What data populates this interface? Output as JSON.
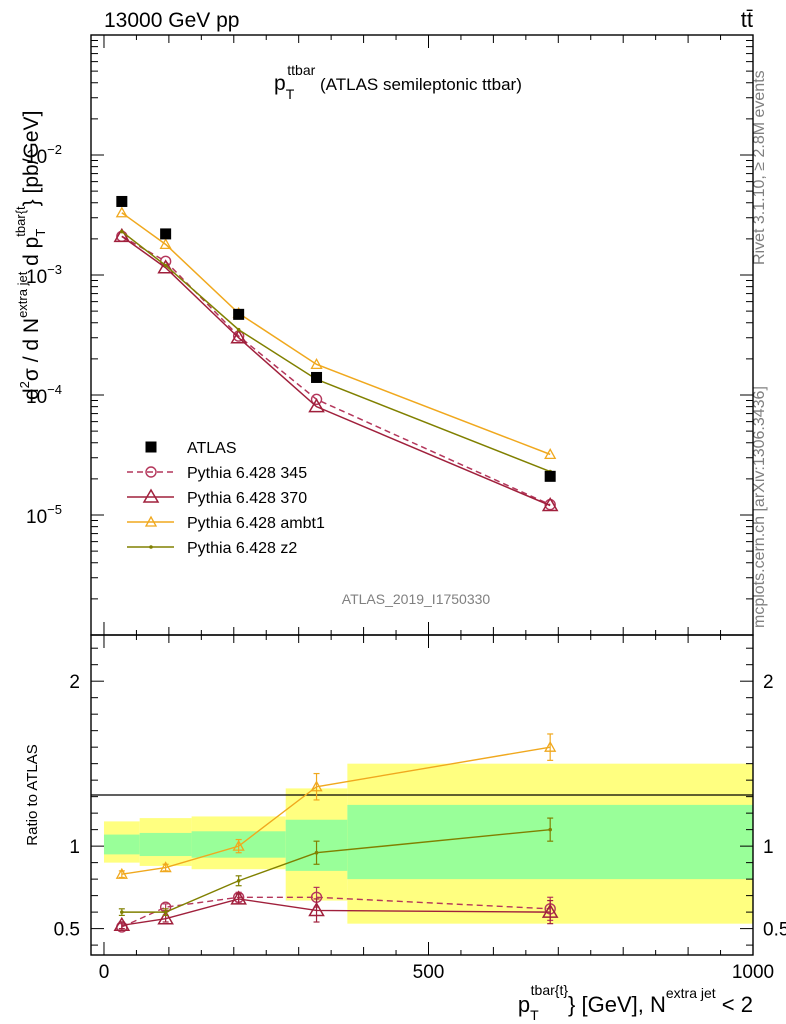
{
  "header": {
    "energy_label": "13000 GeV pp",
    "process_label": "tt̄",
    "side_rivet": "Rivet 3.1.10, ≥ 2.8M events",
    "side_mcplots": "mcplots.cern.ch [arXiv:1306.3436]",
    "analysis_id": "ATLAS_2019_I1750330"
  },
  "chart_data": [
    {
      "type": "scatter",
      "title": "p_T^ttbar (ATLAS semileptonic ttbar)",
      "title_parts": {
        "main": "p",
        "sub": "T",
        "sup": "ttbar",
        "rest": " (ATLAS semileptonic ttbar)"
      },
      "ylabel": "d²σ / d N^{extra jet} d p_T^{tbar{t}} [pb/GeV]",
      "ylabel_parts": {
        "p1": "d",
        "s1": "2",
        "p2": "σ  /  d N",
        "s2": "extra jet",
        "p3": " d p",
        "sub3": "T",
        "s3": "tbar{t",
        "p4": "} [pb/GeV]"
      },
      "xlim": [
        -20,
        1000
      ],
      "ylim": [
        1e-06,
        0.1
      ],
      "log_y": true,
      "y_ticks": [
        {
          "v": 1e-05,
          "m": "10",
          "e": "−5"
        },
        {
          "v": 0.0001,
          "m": "10",
          "e": "−4"
        },
        {
          "v": 0.001,
          "m": "10",
          "e": "−3"
        },
        {
          "v": 0.01,
          "m": "10",
          "e": "−2"
        }
      ],
      "legend_position": "bottom-left",
      "series": [
        {
          "name": "ATLAS",
          "color": "#000000",
          "marker": "square",
          "line": "none",
          "x": [
            27.5,
            95,
            207.5,
            327.5,
            687.5
          ],
          "y": [
            0.0041,
            0.0022,
            0.00047,
            0.00014,
            2.1e-05
          ]
        },
        {
          "name": "Pythia 6.428 345",
          "color": "#b4365b",
          "marker": "open-circle",
          "line": "dashed",
          "x": [
            27.5,
            95,
            207.5,
            327.5,
            687.5
          ],
          "y": [
            0.0021,
            0.0013,
            0.00031,
            9.2e-05,
            1.22e-05
          ]
        },
        {
          "name": "Pythia 6.428 370",
          "color": "#a0203c",
          "marker": "open-triangle-large",
          "line": "solid",
          "x": [
            27.5,
            95,
            207.5,
            327.5,
            687.5
          ],
          "y": [
            0.0021,
            0.00115,
            0.0003,
            8e-05,
            1.2e-05
          ]
        },
        {
          "name": "Pythia 6.428 ambt1",
          "color": "#f0a81e",
          "marker": "open-triangle",
          "line": "solid",
          "x": [
            27.5,
            95,
            207.5,
            327.5,
            687.5
          ],
          "y": [
            0.0033,
            0.0018,
            0.00048,
            0.00018,
            3.2e-05
          ]
        },
        {
          "name": "Pythia 6.428 z2",
          "color": "#808000",
          "marker": "dot",
          "line": "solid",
          "x": [
            27.5,
            95,
            207.5,
            327.5,
            687.5
          ],
          "y": [
            0.0023,
            0.0012,
            0.00035,
            0.000135,
            2.3e-05
          ]
        }
      ]
    },
    {
      "type": "line",
      "ylabel": "Ratio to ATLAS",
      "xlabel": "p_T^{tbar{t}} [GeV], N^{extra jet} < 2",
      "xlabel_parts": {
        "p1": "p",
        "sub1": "T",
        "s1": "tbar{t}",
        "p2": "} [GeV], N",
        "s2": "extra jet",
        "p3": " < 2"
      },
      "xlim": [
        -20,
        1000
      ],
      "ylim": [
        0.34,
        2.28
      ],
      "x_ticks": [
        0,
        500,
        1000
      ],
      "y_ticks": [
        0.5,
        1,
        2
      ],
      "bins": [
        [
          0,
          55
        ],
        [
          55,
          135
        ],
        [
          135,
          280
        ],
        [
          280,
          375
        ],
        [
          375,
          1000
        ]
      ],
      "band_green": [
        [
          0.95,
          1.07
        ],
        [
          0.94,
          1.08
        ],
        [
          0.93,
          1.09
        ],
        [
          0.85,
          1.16
        ],
        [
          0.8,
          1.25
        ]
      ],
      "band_yellow": [
        [
          0.9,
          1.15
        ],
        [
          0.88,
          1.17
        ],
        [
          0.86,
          1.18
        ],
        [
          0.67,
          1.35
        ],
        [
          0.53,
          1.5
        ]
      ],
      "series": [
        {
          "name": "Pythia 6.428 345",
          "color": "#b4365b",
          "x": [
            27.5,
            95,
            207.5,
            327.5,
            687.5
          ],
          "y": [
            0.51,
            0.63,
            0.69,
            0.69,
            0.62
          ],
          "err": [
            0.02,
            0.02,
            0.03,
            0.06,
            0.07
          ]
        },
        {
          "name": "Pythia 6.428 370",
          "color": "#a0203c",
          "x": [
            27.5,
            95,
            207.5,
            327.5,
            687.5
          ],
          "y": [
            0.52,
            0.56,
            0.68,
            0.61,
            0.6
          ],
          "err": [
            0.02,
            0.02,
            0.03,
            0.07,
            0.07
          ]
        },
        {
          "name": "Pythia 6.428 ambt1",
          "color": "#f0a81e",
          "x": [
            27.5,
            95,
            207.5,
            327.5,
            687.5
          ],
          "y": [
            0.83,
            0.87,
            1.0,
            1.36,
            1.6
          ],
          "err": [
            0.02,
            0.02,
            0.04,
            0.08,
            0.08
          ]
        },
        {
          "name": "Pythia 6.428 z2",
          "color": "#808000",
          "x": [
            27.5,
            95,
            207.5,
            327.5,
            687.5
          ],
          "y": [
            0.6,
            0.6,
            0.79,
            0.96,
            1.1
          ],
          "err": [
            0.02,
            0.02,
            0.03,
            0.07,
            0.07
          ]
        }
      ]
    }
  ]
}
